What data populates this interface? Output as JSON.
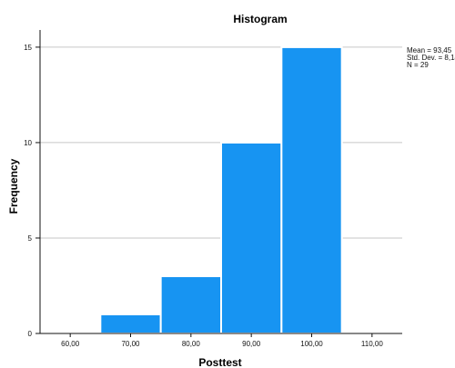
{
  "chart_data": {
    "type": "bar",
    "title": "Histogram",
    "xlabel": "Posttest",
    "ylabel": "Frequency",
    "x_ticks": [
      "60,00",
      "70,00",
      "80,00",
      "90,00",
      "100,00",
      "110,00"
    ],
    "y_ticks": [
      "0",
      "5",
      "10",
      "15"
    ],
    "xlim": [
      55,
      115
    ],
    "ylim": [
      0,
      15.9
    ],
    "bins": [
      {
        "start": 65,
        "end": 75,
        "count": 1
      },
      {
        "start": 75,
        "end": 85,
        "count": 3
      },
      {
        "start": 85,
        "end": 95,
        "count": 10
      },
      {
        "start": 95,
        "end": 105,
        "count": 15
      }
    ],
    "stats": [
      "Mean = 93,45",
      "Std. Dev. = 8,14",
      "N = 29"
    ],
    "grid": true,
    "colors": {
      "bar": "#1794f2",
      "grid": "#c7c7c7",
      "axis": "#111111"
    }
  }
}
